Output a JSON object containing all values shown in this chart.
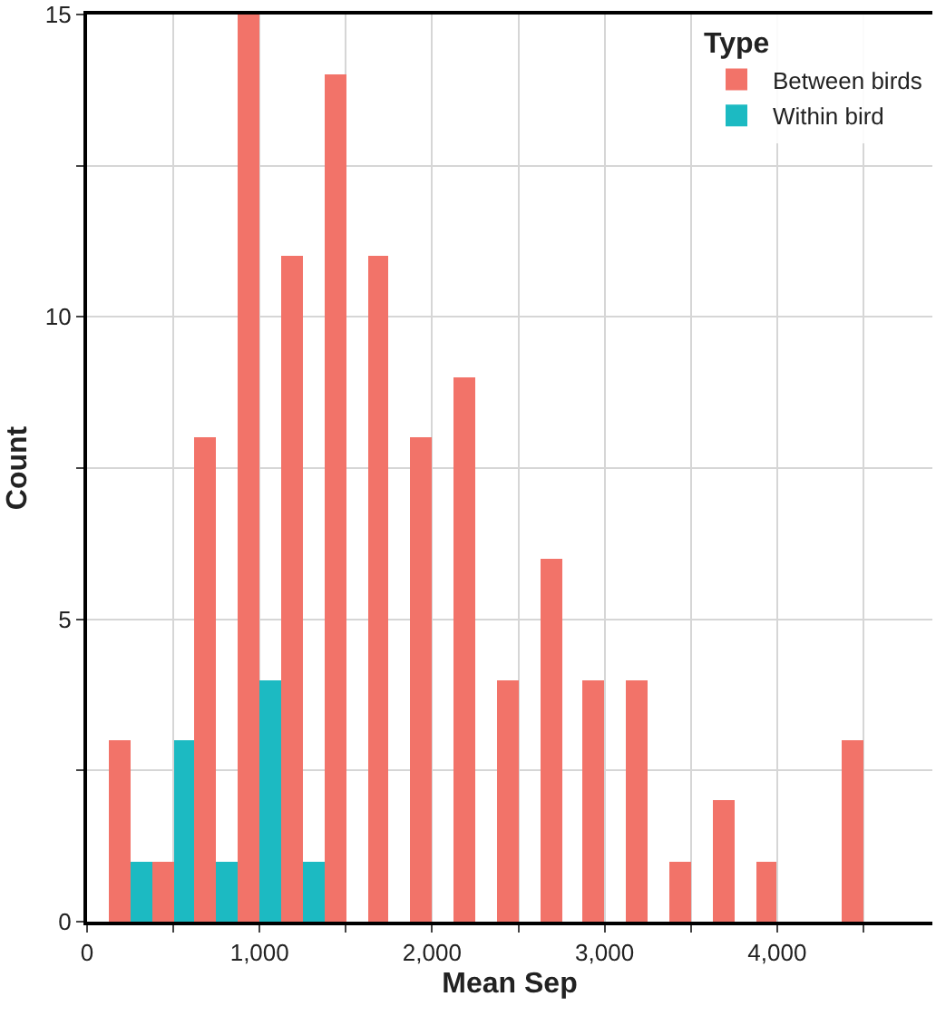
{
  "chart_data": {
    "type": "histogram",
    "xlabel": "Mean Sep",
    "ylabel": "Count",
    "legend_title": "Type",
    "bins": [
      125,
      375,
      625,
      875,
      1125,
      1375,
      1625,
      1875,
      2125,
      2375,
      2625,
      2875,
      3125,
      3375,
      3625,
      3875,
      4125,
      4375,
      4625
    ],
    "series": [
      {
        "name": "Between birds",
        "color": "#f27369",
        "values": [
          3,
          1,
          8,
          15,
          11,
          14,
          11,
          8,
          9,
          4,
          6,
          4,
          4,
          1,
          2,
          1,
          0,
          3
        ]
      },
      {
        "name": "Within bird",
        "color": "#1cbac2",
        "values": [
          1,
          3,
          1,
          4,
          1,
          0,
          0,
          0,
          0,
          0,
          0,
          0,
          0,
          0,
          0,
          0,
          0,
          0
        ]
      }
    ],
    "xlim": [
      0,
      4900
    ],
    "xticks": [
      0,
      {
        "value": 500,
        "label": null
      },
      {
        "value": 1000,
        "label": "1,000"
      },
      {
        "value": 1500,
        "label": null
      },
      {
        "value": 2000,
        "label": "2,000"
      },
      {
        "value": 2500,
        "label": null
      },
      {
        "value": 3000,
        "label": "3,000"
      },
      {
        "value": 3500,
        "label": null
      },
      {
        "value": 4000,
        "label": "4,000"
      },
      {
        "value": 4500,
        "label": null
      }
    ],
    "ylim": [
      0,
      15
    ],
    "yticks": [
      0,
      {
        "value": 2.5,
        "label": null
      },
      5,
      {
        "value": 7.5,
        "label": null
      },
      10,
      {
        "value": 12.5,
        "label": null
      },
      15
    ],
    "grid": true,
    "legend": "top right"
  }
}
